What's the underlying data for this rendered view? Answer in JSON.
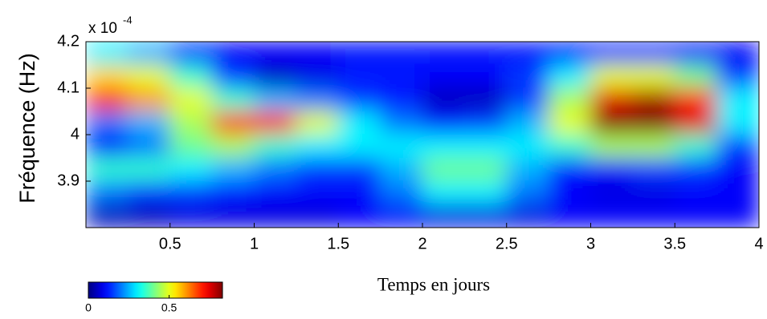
{
  "chart_data": {
    "type": "heatmap",
    "ylabel": "Fréquence (Hz)",
    "xlabel": "Temps en jours",
    "y_multiplier": "x 10",
    "y_multiplier_exponent": "-4",
    "xlim": [
      0,
      4
    ],
    "xticks": [
      0.5,
      1,
      1.5,
      2,
      2.5,
      3,
      3.5,
      4
    ],
    "ylim": [
      3.8,
      4.2
    ],
    "yticks": [
      3.9,
      4,
      4.1,
      4.2
    ],
    "x": [
      0.125,
      0.375,
      0.625,
      0.875,
      1.125,
      1.375,
      1.625,
      1.875,
      2.125,
      2.375,
      2.625,
      2.875,
      3.125,
      3.375,
      3.625,
      3.875
    ],
    "y": [
      4.175,
      4.125,
      4.075,
      4.025,
      3.975,
      3.925,
      3.875,
      3.825
    ],
    "z": [
      [
        0.3,
        0.25,
        0.15,
        0.1,
        0.1,
        0.1,
        0.12,
        0.12,
        0.12,
        0.12,
        0.12,
        0.12,
        0.15,
        0.15,
        0.1,
        0.1
      ],
      [
        0.55,
        0.5,
        0.35,
        0.15,
        0.05,
        0.08,
        0.12,
        0.12,
        0.1,
        0.1,
        0.15,
        0.3,
        0.5,
        0.5,
        0.4,
        0.15
      ],
      [
        0.7,
        0.6,
        0.5,
        0.35,
        0.25,
        0.2,
        0.15,
        0.12,
        0.05,
        0.05,
        0.15,
        0.45,
        0.75,
        0.8,
        0.7,
        0.3
      ],
      [
        0.2,
        0.25,
        0.45,
        0.7,
        0.7,
        0.5,
        0.3,
        0.2,
        0.12,
        0.15,
        0.25,
        0.5,
        0.83,
        0.83,
        0.75,
        0.3
      ],
      [
        0.1,
        0.2,
        0.4,
        0.45,
        0.35,
        0.3,
        0.3,
        0.3,
        0.3,
        0.3,
        0.3,
        0.35,
        0.45,
        0.45,
        0.35,
        0.15
      ],
      [
        0.35,
        0.35,
        0.3,
        0.25,
        0.2,
        0.15,
        0.15,
        0.25,
        0.4,
        0.4,
        0.25,
        0.12,
        0.1,
        0.15,
        0.15,
        0.1
      ],
      [
        0.2,
        0.15,
        0.15,
        0.12,
        0.1,
        0.1,
        0.1,
        0.2,
        0.3,
        0.3,
        0.2,
        0.1,
        0.08,
        0.08,
        0.1,
        0.1
      ],
      [
        0.05,
        0.05,
        0.08,
        0.08,
        0.08,
        0.08,
        0.1,
        0.1,
        0.08,
        0.08,
        0.08,
        0.1,
        0.1,
        0.1,
        0.1,
        0.1
      ]
    ],
    "colormap": "jet",
    "clim": [
      0,
      0.83
    ],
    "cticks": [
      0,
      0.5
    ]
  }
}
